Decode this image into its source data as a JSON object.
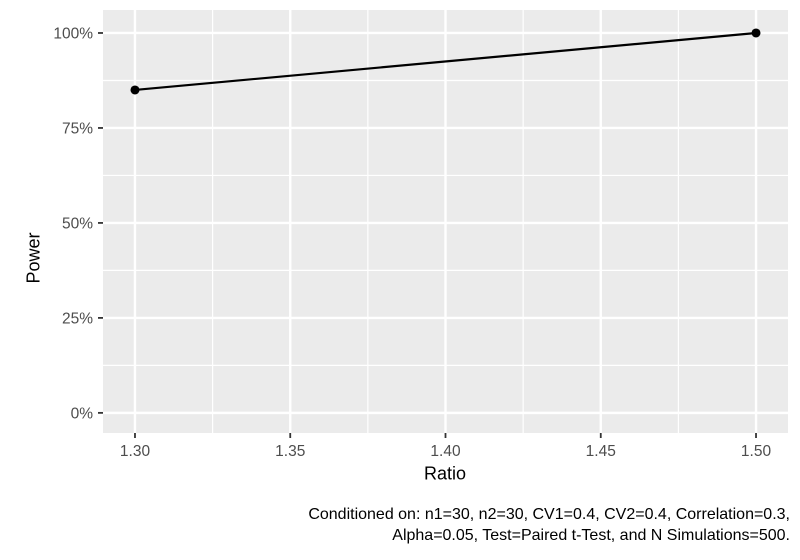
{
  "figure": {
    "background": "#FFFFFF"
  },
  "chart_data": {
    "type": "line",
    "title": "",
    "xlabel": "Ratio",
    "ylabel": "Power",
    "x": [
      1.3,
      1.5
    ],
    "series": [
      {
        "name": "Power",
        "values_percent": [
          85,
          100
        ]
      }
    ],
    "x_ticks": {
      "values": [
        1.3,
        1.35,
        1.4,
        1.45,
        1.5
      ],
      "labels": [
        "1.30",
        "1.35",
        "1.40",
        "1.45",
        "1.50"
      ]
    },
    "y_ticks": {
      "values": [
        0,
        25,
        50,
        75,
        100
      ],
      "labels": [
        "0%",
        "25%",
        "50%",
        "75%",
        "100%"
      ]
    },
    "xlim": [
      1.2897,
      1.5103
    ],
    "ylim": [
      -5.3,
      106.05
    ],
    "grid": "major+minor",
    "legend": "none",
    "colors": {
      "panel_background": "#EBEBEB",
      "grid": "#FFFFFF",
      "line": "#000000",
      "point": "#000000",
      "tick_mark": "#333333",
      "tick_label": "#4D4D4D",
      "axis_title": "#000000",
      "caption": "#000000"
    }
  },
  "caption": {
    "line1": "Conditioned on: n1=30, n2=30, CV1=0.4, CV2=0.4, Correlation=0.3,",
    "line2": "Alpha=0.05, Test=Paired t-Test, and N Simulations=500."
  }
}
